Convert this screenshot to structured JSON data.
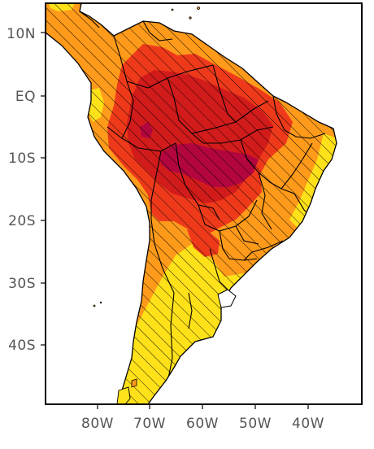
{
  "map": {
    "region": "South America",
    "colors": {
      "ocean": "#ffffff",
      "yellow": "#ffe11a",
      "orange": "#ff9a1a",
      "red_orange": "#ee3a1a",
      "red": "#d21b1b",
      "dark_red": "#b3063f",
      "border": "#000000",
      "hatch": "#000000"
    },
    "y_axis": {
      "labels": [
        "10N",
        "EQ",
        "10S",
        "20S",
        "30S",
        "40S"
      ]
    },
    "x_axis": {
      "labels": [
        "80W",
        "70W",
        "60W",
        "50W",
        "40W"
      ]
    },
    "hatching": "diagonal"
  }
}
